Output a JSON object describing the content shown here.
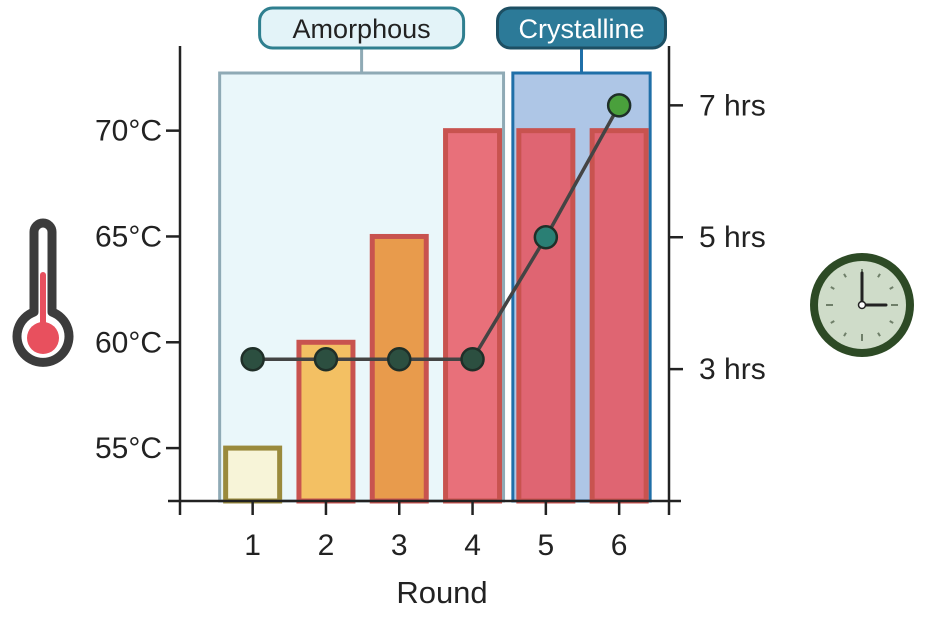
{
  "chart_data": {
    "type": "bar",
    "categories": [
      "1",
      "2",
      "3",
      "4",
      "5",
      "6"
    ],
    "xlabel": "Round",
    "temperature_axis": {
      "label": "",
      "ticks": [
        "55°C",
        "60°C",
        "65°C",
        "70°C"
      ],
      "tick_values": [
        55,
        60,
        65,
        70
      ],
      "range": [
        52.5,
        74
      ]
    },
    "time_axis": {
      "label": "",
      "ticks": [
        "3 hrs",
        "5 hrs",
        "7 hrs"
      ],
      "tick_values": [
        3,
        5,
        7
      ],
      "range": [
        1,
        7.9
      ]
    },
    "series": [
      {
        "kind": "bar",
        "axis": "temperature",
        "values": [
          55,
          60,
          65,
          70,
          70,
          70
        ],
        "fill_colors": [
          "#f7f4d8",
          "#f3c063",
          "#e89b4c",
          "#e8707a",
          "#df6572",
          "#df6572"
        ],
        "stroke_colors": [
          "#9a8a3c",
          "#c8534f",
          "#c8534f",
          "#c8534f",
          "#c8534f",
          "#c8534f"
        ]
      },
      {
        "kind": "line",
        "axis": "time",
        "values": [
          3.15,
          3.15,
          3.15,
          3.15,
          5.0,
          7.0
        ],
        "marker_colors": [
          "#2c4f40",
          "#2c4f40",
          "#2c4f40",
          "#2c4f40",
          "#2a7f74",
          "#4aa03c"
        ],
        "line_color": "#444444"
      }
    ],
    "regions": [
      {
        "label": "Amorphous",
        "rounds": [
          "1",
          "4"
        ],
        "fill": "#eaf7fa",
        "stroke": "#8faab5",
        "label_fill": "#e3f3f8",
        "label_stroke": "#2f7f8f",
        "label_text_color": "#222222"
      },
      {
        "label": "Crystalline",
        "rounds": [
          "5",
          "6"
        ],
        "fill": "#aec6e6",
        "stroke": "#1f6fa8",
        "label_fill": "#2c7a98",
        "label_stroke": "#1d4f63",
        "label_text_color": "#ffffff"
      }
    ],
    "icons": {
      "left": "thermometer-icon",
      "right": "clock-icon"
    },
    "colors": {
      "axis": "#222222",
      "thermometer_outline": "#3c3c3c",
      "thermometer_fluid": "#e8505e",
      "clock_rim": "#2d4a25",
      "clock_face": "#cfdcc9"
    }
  }
}
